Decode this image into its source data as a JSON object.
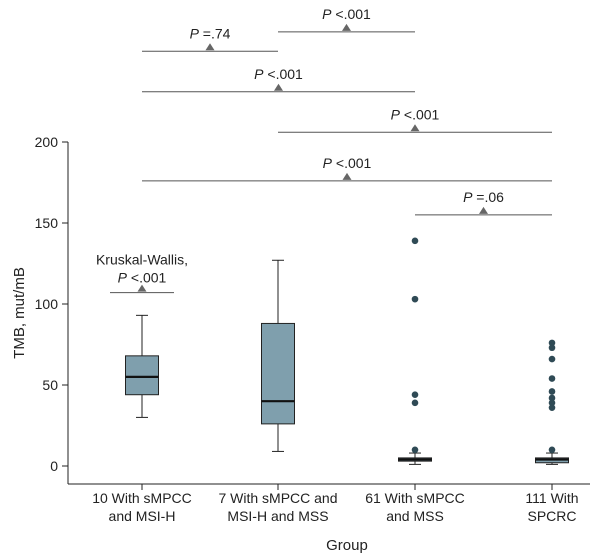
{
  "chart_data": {
    "type": "box",
    "title": "",
    "xlabel": "Group",
    "ylabel": "TMB, mut/mB",
    "ylim": [
      0,
      200
    ],
    "yticks": [
      0,
      50,
      100,
      150,
      200
    ],
    "box_color": "#7f9fad",
    "outlier_color": "#2f4a55",
    "groups": [
      {
        "label_lines": [
          "10 With sMPCC",
          "and MSI-H"
        ],
        "whisker_low": 30,
        "q1": 44,
        "median": 55,
        "q3": 68,
        "whisker_high": 93,
        "outliers": []
      },
      {
        "label_lines": [
          "7 With sMPCC and",
          "MSI-H and MSS"
        ],
        "whisker_low": 9,
        "q1": 26,
        "median": 40,
        "q3": 88,
        "whisker_high": 127,
        "outliers": []
      },
      {
        "label_lines": [
          "61 With sMPCC",
          "and MSS"
        ],
        "whisker_low": 1,
        "q1": 3,
        "median": 4,
        "q3": 5,
        "whisker_high": 8,
        "outliers": [
          10,
          39,
          44,
          103,
          139
        ]
      },
      {
        "label_lines": [
          "111 With",
          "SPCRC"
        ],
        "whisker_low": 1,
        "q1": 2,
        "median": 4,
        "q3": 5,
        "whisker_high": 8,
        "outliers": [
          10,
          36,
          39,
          42,
          46,
          54,
          66,
          73,
          76
        ]
      }
    ],
    "annotations": [
      {
        "kind": "overall",
        "label_line1": "Kruskal-Wallis,",
        "p_symbol": "P",
        "p_value": "<.001",
        "from": 1,
        "to": 1,
        "level": 107
      },
      {
        "kind": "pairwise",
        "p_symbol": "P",
        "p_value": "=.06",
        "from": 3,
        "to": 4,
        "level": 155
      },
      {
        "kind": "pairwise",
        "p_symbol": "P",
        "p_value": "<.001",
        "from": 1,
        "to": 4,
        "level": 176
      },
      {
        "kind": "pairwise",
        "p_symbol": "P",
        "p_value": "<.001",
        "from": 2,
        "to": 4,
        "level": 206
      },
      {
        "kind": "pairwise",
        "p_symbol": "P",
        "p_value": "<.001",
        "from": 1,
        "to": 3,
        "level": 231
      },
      {
        "kind": "pairwise",
        "p_symbol": "P",
        "p_value": "=.74",
        "from": 1,
        "to": 2,
        "level": 256
      },
      {
        "kind": "pairwise",
        "p_symbol": "P",
        "p_value": "<.001",
        "from": 2,
        "to": 3,
        "level": 268
      }
    ]
  }
}
